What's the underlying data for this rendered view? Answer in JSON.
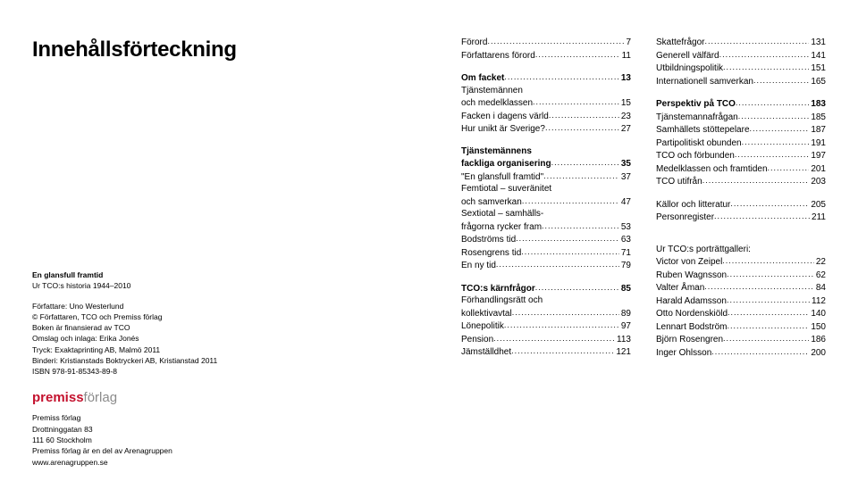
{
  "main_title": "Innehållsförteckning",
  "colophon": {
    "book_title": "En glansfull framtid",
    "subtitle": "Ur TCO:s historia 1944–2010",
    "author_line": "Författare: Uno Westerlund",
    "copyright": "© Författaren, TCO och Premiss förlag",
    "financed": "Boken är finansierad av TCO",
    "cover": "Omslag och inlaga: Erika Jonés",
    "print": "Tryck: Exaktaprinting AB, Malmö 2011",
    "bindery": "Binderi: Kristianstads Boktryckeri AB, Kristianstad 2011",
    "isbn": "ISBN 978-91-85343-89-8",
    "logo_red": "premiss",
    "logo_gray": "förlag",
    "pub1": "Premiss förlag",
    "pub2": "Drottninggatan 83",
    "pub3": "111 60 Stockholm",
    "pub4": "Premiss förlag är en del av Arenagruppen",
    "pub5": "www.arenagruppen.se"
  },
  "col1": [
    {
      "type": "row",
      "label": "Förord",
      "page": "7"
    },
    {
      "type": "row",
      "label": "Författarens förord",
      "page": "11"
    },
    {
      "type": "spacer"
    },
    {
      "type": "row",
      "label": "Om facket",
      "page": "13",
      "bold": true
    },
    {
      "type": "text",
      "label": "Tjänstemännen"
    },
    {
      "type": "row",
      "label": "och medelklassen",
      "page": "15"
    },
    {
      "type": "row",
      "label": "Facken i dagens värld",
      "page": "23"
    },
    {
      "type": "row",
      "label": "Hur unikt är Sverige?",
      "page": "27"
    },
    {
      "type": "spacer"
    },
    {
      "type": "text",
      "label": "Tjänstemännens",
      "bold": true
    },
    {
      "type": "row",
      "label": "fackliga organisering",
      "page": "35",
      "bold": true
    },
    {
      "type": "row",
      "label": "\"En glansfull framtid\"",
      "page": "37"
    },
    {
      "type": "text",
      "label": "Femtiotal – suveränitet"
    },
    {
      "type": "row",
      "label": "och samverkan",
      "page": "47"
    },
    {
      "type": "text",
      "label": "Sextiotal – samhälls-"
    },
    {
      "type": "row",
      "label": "frågorna rycker fram",
      "page": "53"
    },
    {
      "type": "row",
      "label": "Bodströms tid",
      "page": "63"
    },
    {
      "type": "row",
      "label": "Rosengrens tid",
      "page": "71"
    },
    {
      "type": "row",
      "label": "En ny tid",
      "page": "79"
    },
    {
      "type": "spacer"
    },
    {
      "type": "row",
      "label": "TCO:s kärnfrågor",
      "page": "85",
      "bold": true
    },
    {
      "type": "text",
      "label": "Förhandlingsrätt och"
    },
    {
      "type": "row",
      "label": "kollektivavtal",
      "page": "89"
    },
    {
      "type": "row",
      "label": "Lönepolitik",
      "page": "97"
    },
    {
      "type": "row",
      "label": "Pension",
      "page": "113"
    },
    {
      "type": "row",
      "label": "Jämställdhet",
      "page": "121"
    }
  ],
  "col2": [
    {
      "type": "row",
      "label": "Skattefrågor",
      "page": "131"
    },
    {
      "type": "row",
      "label": "Generell välfärd",
      "page": "141"
    },
    {
      "type": "row",
      "label": "Utbildningspolitik",
      "page": "151"
    },
    {
      "type": "row",
      "label": "Internationell samverkan",
      "page": "165"
    },
    {
      "type": "spacer"
    },
    {
      "type": "row",
      "label": "Perspektiv på TCO",
      "page": "183",
      "bold": true
    },
    {
      "type": "row",
      "label": "Tjänstemannafrågan",
      "page": "185"
    },
    {
      "type": "row",
      "label": "Samhällets stöttepelare",
      "page": "187"
    },
    {
      "type": "row",
      "label": "Partipolitiskt obunden",
      "page": "191"
    },
    {
      "type": "row",
      "label": "TCO och förbunden",
      "page": "197"
    },
    {
      "type": "row",
      "label": "Medelklassen och framtiden",
      "page": "201"
    },
    {
      "type": "row",
      "label": "TCO utifrån",
      "page": "203"
    },
    {
      "type": "spacer"
    },
    {
      "type": "row",
      "label": "Källor och litteratur",
      "page": "205"
    },
    {
      "type": "row",
      "label": "Personregister",
      "page": "211"
    },
    {
      "type": "spacer"
    },
    {
      "type": "spacer"
    },
    {
      "type": "text",
      "label": "Ur TCO:s porträttgalleri:"
    },
    {
      "type": "row",
      "label": "Victor von Zeipel",
      "page": "22"
    },
    {
      "type": "row",
      "label": "Ruben Wagnsson",
      "page": "62"
    },
    {
      "type": "row",
      "label": "Valter Åman",
      "page": "84"
    },
    {
      "type": "row",
      "label": "Harald Adamsson",
      "page": "112"
    },
    {
      "type": "row",
      "label": "Otto Nordenskiöld",
      "page": "140"
    },
    {
      "type": "row",
      "label": "Lennart Bodström",
      "page": "150"
    },
    {
      "type": "row",
      "label": "Björn Rosengren",
      "page": "186"
    },
    {
      "type": "row",
      "label": "Inger Ohlsson",
      "page": "200"
    }
  ]
}
